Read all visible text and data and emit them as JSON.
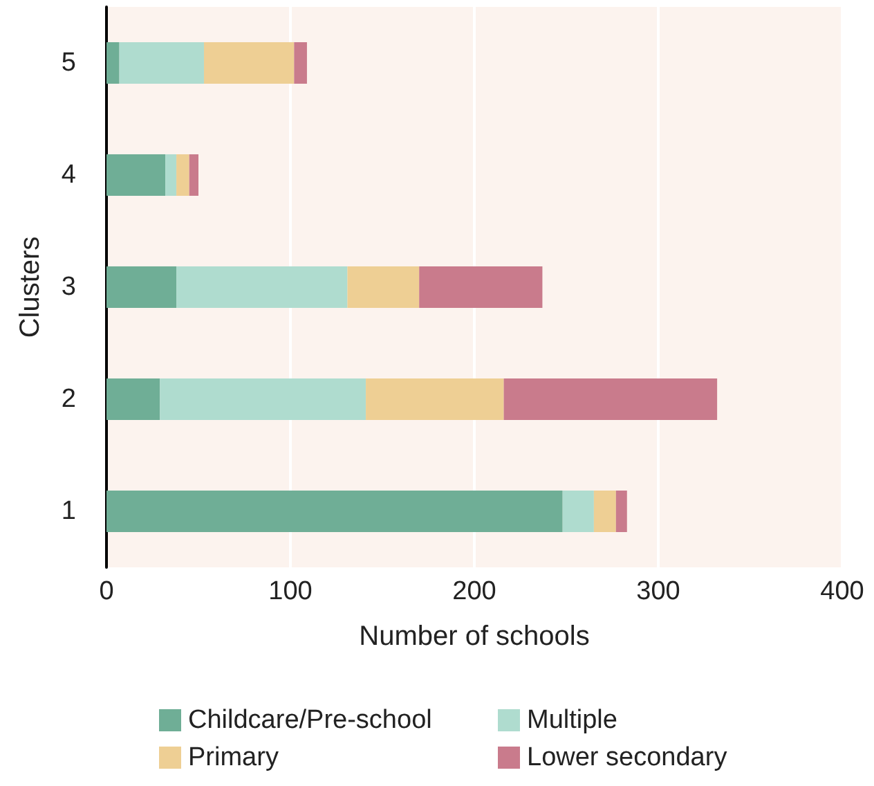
{
  "chart_data": {
    "type": "bar",
    "orientation": "horizontal",
    "stacked": true,
    "xlabel": "Number of schools",
    "ylabel": "Clusters",
    "categories": [
      "5",
      "4",
      "3",
      "2",
      "1"
    ],
    "series": [
      {
        "name": "Childcare/Pre-school",
        "color": "#6fae96",
        "values": [
          7,
          32,
          38,
          29,
          248
        ]
      },
      {
        "name": "Multiple",
        "color": "#afdccf",
        "values": [
          46,
          6,
          93,
          112,
          17
        ]
      },
      {
        "name": "Primary",
        "color": "#eecf94",
        "values": [
          49,
          7,
          39,
          75,
          12
        ]
      },
      {
        "name": "Lower secondary",
        "color": "#c97b8c",
        "values": [
          7,
          5,
          67,
          116,
          6
        ]
      }
    ],
    "xlim": [
      0,
      400
    ],
    "xticks": [
      0,
      100,
      200,
      300,
      400
    ],
    "grid": "x",
    "legend": "bottom"
  }
}
